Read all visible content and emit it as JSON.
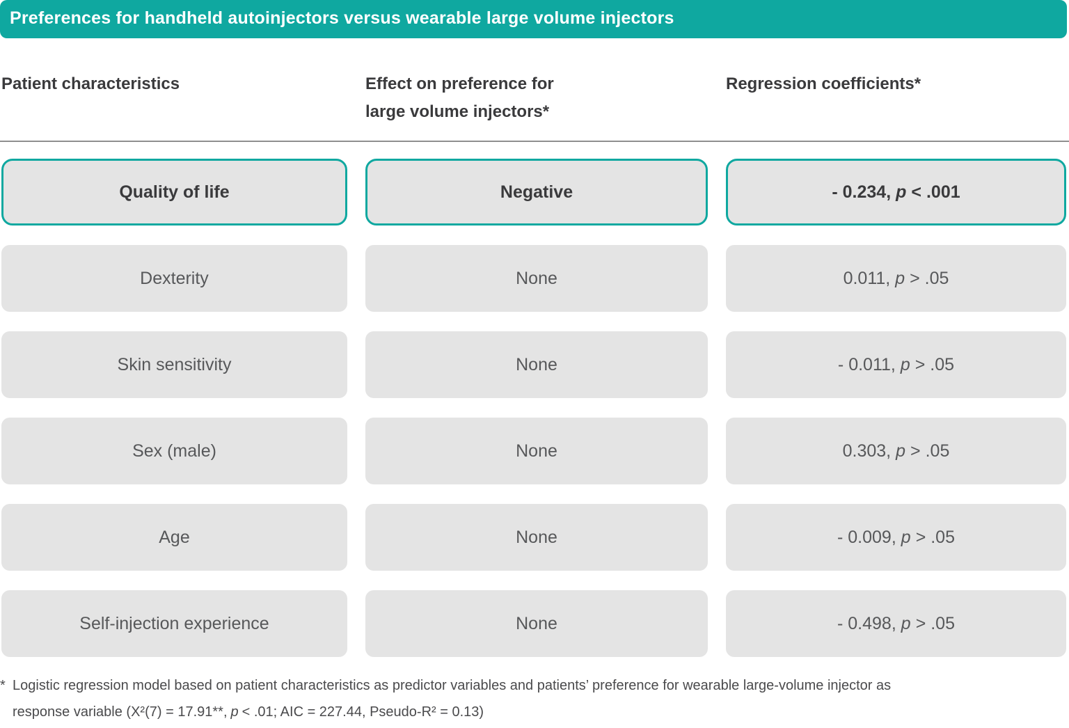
{
  "colors": {
    "teal": "#0FA8A0",
    "box-gray": "#E4E4E4",
    "text-dark": "#3A3A3C",
    "text-gray": "#57585A",
    "divider": "#8F8F8F",
    "title-text": "#FFFFFF"
  },
  "title_bar": {
    "text": "Preferences for handheld autoinjectors versus wearable large volume injectors"
  },
  "column_headers": [
    {
      "lines": [
        "Patient characteristics",
        ""
      ]
    },
    {
      "lines": [
        "Effect on preference for",
        "large volume injectors*"
      ]
    },
    {
      "lines": [
        "Regression coefficients*",
        ""
      ]
    }
  ],
  "rows": [
    {
      "characteristic": "Quality of life",
      "effect": "Negative",
      "coef_value": "- 0.234,",
      "p_label": "p",
      "p_rel": "< .001",
      "highlighted": true
    },
    {
      "characteristic": "Dexterity",
      "effect": "None",
      "coef_value": "0.011,",
      "p_label": "p",
      "p_rel": "> .05",
      "highlighted": false
    },
    {
      "characteristic": "Skin sensitivity",
      "effect": "None",
      "coef_value": "- 0.011,",
      "p_label": "p",
      "p_rel": "> .05",
      "highlighted": false
    },
    {
      "characteristic": "Sex (male)",
      "effect": "None",
      "coef_value": "0.303,",
      "p_label": "p",
      "p_rel": "> .05",
      "highlighted": false
    },
    {
      "characteristic": "Age",
      "effect": "None",
      "coef_value": "- 0.009,",
      "p_label": "p",
      "p_rel": "> .05",
      "highlighted": false
    },
    {
      "characteristic": "Self-injection experience",
      "effect": "None",
      "coef_value": "- 0.498,",
      "p_label": "p",
      "p_rel": "> .05",
      "highlighted": false
    }
  ],
  "footnote": {
    "marker": "*",
    "line1": "Logistic regression model based on patient characteristics as predictor variables and patients’ preference for wearable large-volume injector as",
    "line2_pre": "response variable (X²(7) = 17.91**,",
    "p_label": "p",
    "line2_post": "< .01; AIC = 227.44, Pseudo-R² = 0.13)"
  },
  "chart_data": {
    "type": "table",
    "title": "Preferences for handheld autoinjectors versus wearable large volume injectors",
    "columns": [
      "Patient characteristics",
      "Effect on preference for large volume injectors*",
      "Regression coefficients*"
    ],
    "rows": [
      [
        "Quality of life",
        "Negative",
        "- 0.234, p < .001"
      ],
      [
        "Dexterity",
        "None",
        "0.011, p > .05"
      ],
      [
        "Skin sensitivity",
        "None",
        "- 0.011, p > .05"
      ],
      [
        "Sex (male)",
        "None",
        "0.303, p > .05"
      ],
      [
        "Age",
        "None",
        "- 0.009, p > .05"
      ],
      [
        "Self-injection experience",
        "None",
        "- 0.498, p > .05"
      ]
    ],
    "highlighted_row": "Quality of life",
    "footnote": "* Logistic regression model based on patient characteristics as predictor variables and patients’ preference for wearable large-volume injector as response variable (X²(7) = 17.91**, p < .01; AIC = 227.44, Pseudo-R² = 0.13)"
  }
}
